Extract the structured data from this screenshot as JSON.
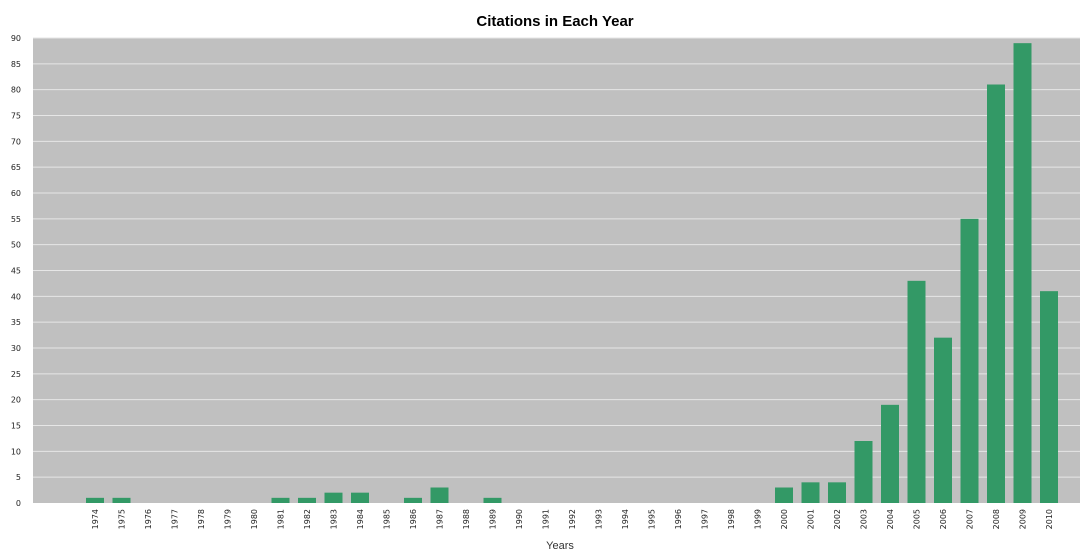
{
  "chart_data": {
    "type": "bar",
    "title": "Citations in Each Year",
    "xlabel": "Years",
    "ylabel": "",
    "ylim": [
      0,
      90
    ],
    "yticks": [
      0,
      5,
      10,
      15,
      20,
      25,
      30,
      35,
      40,
      45,
      50,
      55,
      60,
      65,
      70,
      75,
      80,
      85,
      90
    ],
    "grid": true,
    "legend": "none",
    "colors": {
      "bar": "#339966",
      "plot_bg": "#c0c0c0",
      "grid": "#e6e6e6"
    },
    "categories": [
      "1974",
      "1975",
      "1976",
      "1977",
      "1978",
      "1979",
      "1980",
      "1981",
      "1982",
      "1983",
      "1984",
      "1985",
      "1986",
      "1987",
      "1988",
      "1989",
      "1990",
      "1991",
      "1992",
      "1993",
      "1994",
      "1995",
      "1996",
      "1997",
      "1998",
      "1999",
      "2000",
      "2001",
      "2002",
      "2003",
      "2004",
      "2005",
      "2006",
      "2007",
      "2008",
      "2009",
      "2010"
    ],
    "values": [
      1,
      1,
      0,
      0,
      0,
      0,
      0,
      1,
      1,
      2,
      2,
      0,
      1,
      3,
      0,
      1,
      0,
      0,
      0,
      0,
      0,
      0,
      0,
      0,
      0,
      0,
      3,
      4,
      4,
      12,
      19,
      43,
      32,
      55,
      81,
      89,
      41
    ]
  }
}
